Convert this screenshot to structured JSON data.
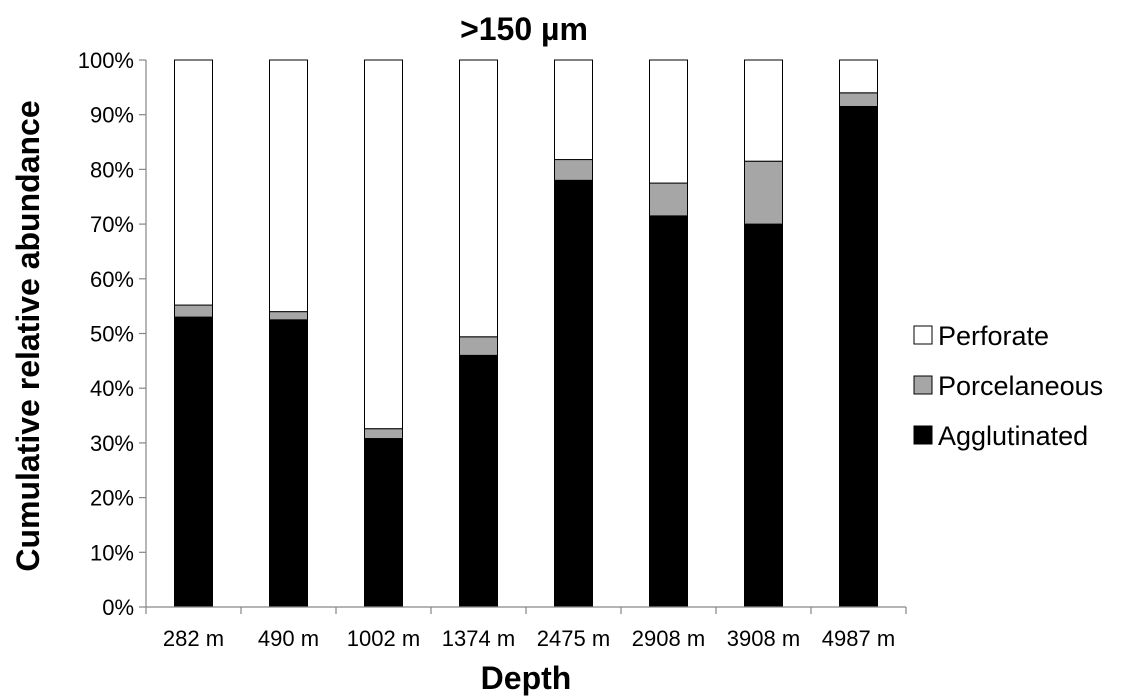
{
  "chart_data": {
    "type": "bar",
    "stacked": true,
    "percent_stacked": true,
    "title": ">150 µm",
    "xlabel": "Depth",
    "ylabel": "Cumulative relative  abundance",
    "categories": [
      "282 m",
      "490 m",
      "1002 m",
      "1374 m",
      "2475 m",
      "2908 m",
      "3908 m",
      "4987 m"
    ],
    "ylim": [
      0,
      100
    ],
    "yticks": [
      "0%",
      "10%",
      "20%",
      "30%",
      "40%",
      "50%",
      "60%",
      "70%",
      "80%",
      "90%",
      "100%"
    ],
    "grid": false,
    "legend_position": "right",
    "series": [
      {
        "name": "Agglutinated",
        "color": "#000000",
        "values": [
          53.0,
          52.5,
          30.8,
          46.0,
          78.0,
          71.5,
          70.0,
          91.5
        ]
      },
      {
        "name": "Porcelaneous",
        "color": "#a6a6a6",
        "values": [
          2.2,
          1.5,
          1.8,
          3.4,
          3.8,
          6.0,
          11.5,
          2.5
        ]
      },
      {
        "name": "Perforate",
        "color": "#ffffff",
        "values": [
          44.8,
          46.0,
          67.4,
          50.6,
          18.2,
          22.5,
          18.5,
          6.0
        ]
      }
    ]
  }
}
